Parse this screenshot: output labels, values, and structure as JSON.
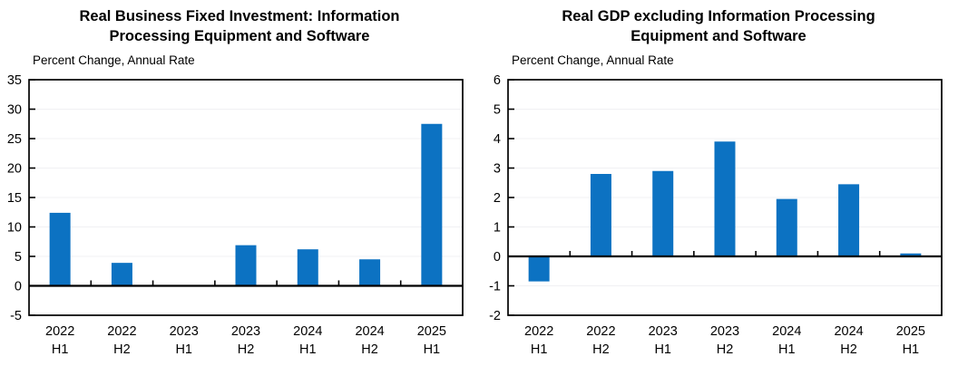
{
  "chart_data": [
    {
      "type": "bar",
      "title": "Real Business Fixed Investment: Information Processing Equipment and Software",
      "subtitle": "Percent Change, Annual Rate",
      "categories": [
        "2022 H1",
        "2022 H2",
        "2023 H1",
        "2023 H2",
        "2024 H1",
        "2024 H2",
        "2025 H1"
      ],
      "values": [
        12.4,
        3.9,
        -0.1,
        6.9,
        6.2,
        4.5,
        27.5
      ],
      "ylim": [
        -5,
        35
      ],
      "ytick_step": 5,
      "grid": true,
      "legend": "none",
      "bar_color": "#0c72c2"
    },
    {
      "type": "bar",
      "title": "Real GDP excluding Information Processing Equipment and Software",
      "subtitle": "Percent Change, Annual Rate",
      "categories": [
        "2022 H1",
        "2022 H2",
        "2023 H1",
        "2023 H2",
        "2024 H1",
        "2024 H2",
        "2025 H1"
      ],
      "values": [
        -0.85,
        2.8,
        2.9,
        3.9,
        1.95,
        2.45,
        0.1
      ],
      "ylim": [
        -2,
        6
      ],
      "ytick_step": 1,
      "grid": true,
      "legend": "none",
      "bar_color": "#0c72c2"
    }
  ],
  "colors": {
    "bar": "#0c72c2",
    "axis": "#000000",
    "gridline": "#f0f0f3",
    "background": "#ffffff"
  }
}
